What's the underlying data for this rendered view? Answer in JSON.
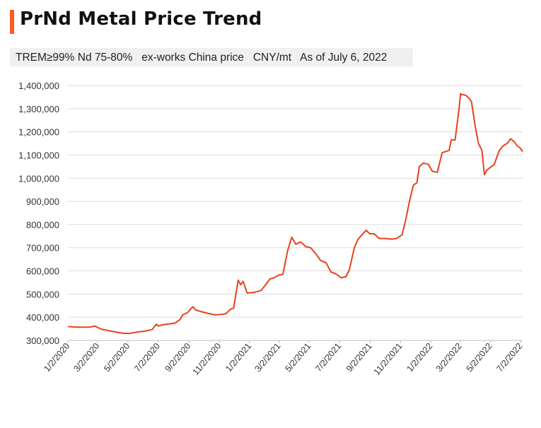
{
  "title": "PrNd Metal Price Trend",
  "subtitle": "TREM≥99% Nd 75-80%   ex-works China price   CNY/mt   As of July 6, 2022",
  "colors": {
    "accent": "#ff5a1f",
    "series": "#e8421c",
    "grid": "#dcdcdc"
  },
  "chart_data": {
    "type": "line",
    "title": "PrNd Metal Price Trend",
    "subtitle": "TREM≥99% Nd 75-80%   ex-works China price   CNY/mt   As of July 6, 2022",
    "xlabel": "",
    "ylabel": "",
    "xlim": [
      "2020-01-02",
      "2022-07-06"
    ],
    "ylim": [
      300000,
      1400000
    ],
    "x_ticks": [
      "1/2/2020",
      "3/2/2020",
      "5/2/2020",
      "7/2/2020",
      "9/2/2020",
      "11/2/2020",
      "1/2/2021",
      "3/2/2021",
      "5/2/2021",
      "7/2/2021",
      "9/2/2021",
      "11/2/2021",
      "1/2/2022",
      "3/2/2022",
      "5/2/2022",
      "7/2/2022"
    ],
    "y_ticks": [
      300000,
      400000,
      500000,
      600000,
      700000,
      800000,
      900000,
      1000000,
      1100000,
      1200000,
      1300000,
      1400000
    ],
    "y_tick_labels": [
      "300,000",
      "400,000",
      "500,000",
      "600,000",
      "700,000",
      "800,000",
      "900,000",
      "1,000,000",
      "1,100,000",
      "1,200,000",
      "1,300,000",
      "1,400,000"
    ],
    "grid": "horizontal",
    "legend": "none",
    "series": [
      {
        "x": [
          "2020-01-02",
          "2020-01-20",
          "2020-02-15",
          "2020-02-25",
          "2020-03-10",
          "2020-03-25",
          "2020-04-10",
          "2020-04-25",
          "2020-05-05",
          "2020-05-20",
          "2020-06-05",
          "2020-06-20",
          "2020-06-28",
          "2020-07-02",
          "2020-07-10",
          "2020-07-20",
          "2020-08-05",
          "2020-08-15",
          "2020-08-20",
          "2020-08-30",
          "2020-09-05",
          "2020-09-10",
          "2020-09-15",
          "2020-09-25",
          "2020-10-10",
          "2020-10-25",
          "2020-11-05",
          "2020-11-15",
          "2020-11-25",
          "2020-12-01",
          "2020-12-05",
          "2020-12-10",
          "2020-12-15",
          "2020-12-20",
          "2020-12-28",
          "2021-01-10",
          "2021-01-25",
          "2021-02-05",
          "2021-02-12",
          "2021-02-20",
          "2021-03-02",
          "2021-03-10",
          "2021-03-20",
          "2021-03-28",
          "2021-04-05",
          "2021-04-10",
          "2021-04-15",
          "2021-04-25",
          "2021-05-05",
          "2021-05-15",
          "2021-05-25",
          "2021-06-05",
          "2021-06-15",
          "2021-06-22",
          "2021-06-30",
          "2021-07-05",
          "2021-07-15",
          "2021-07-22",
          "2021-08-01",
          "2021-08-08",
          "2021-08-18",
          "2021-08-25",
          "2021-09-01",
          "2021-09-10",
          "2021-09-20",
          "2021-10-01",
          "2021-10-15",
          "2021-10-25",
          "2021-11-05",
          "2021-11-12",
          "2021-11-20",
          "2021-11-28",
          "2021-12-05",
          "2021-12-10",
          "2021-12-18",
          "2021-12-28",
          "2022-01-05",
          "2022-01-15",
          "2022-01-25",
          "2022-02-01",
          "2022-02-08",
          "2022-02-12",
          "2022-02-20",
          "2022-02-28",
          "2022-03-03",
          "2022-03-06",
          "2022-03-10",
          "2022-03-15",
          "2022-03-20",
          "2022-03-25",
          "2022-04-01",
          "2022-04-08",
          "2022-04-15",
          "2022-04-20",
          "2022-04-25",
          "2022-05-01",
          "2022-05-10",
          "2022-05-20",
          "2022-05-28",
          "2022-06-05",
          "2022-06-12",
          "2022-06-20",
          "2022-06-25",
          "2022-07-01",
          "2022-07-06"
        ],
        "y": [
          360000,
          357000,
          357000,
          362000,
          348000,
          342000,
          335000,
          330000,
          330000,
          336000,
          340000,
          347000,
          370000,
          362000,
          367000,
          370000,
          375000,
          390000,
          410000,
          420000,
          435000,
          445000,
          432000,
          425000,
          417000,
          410000,
          412000,
          415000,
          435000,
          440000,
          495000,
          560000,
          540000,
          555000,
          505000,
          507000,
          515000,
          545000,
          565000,
          570000,
          582000,
          585000,
          690000,
          745000,
          715000,
          720000,
          725000,
          705000,
          700000,
          675000,
          645000,
          635000,
          595000,
          590000,
          580000,
          570000,
          575000,
          605000,
          700000,
          735000,
          760000,
          775000,
          760000,
          760000,
          740000,
          740000,
          737000,
          740000,
          755000,
          815000,
          900000,
          970000,
          980000,
          1050000,
          1065000,
          1060000,
          1030000,
          1025000,
          1110000,
          1115000,
          1120000,
          1165000,
          1165000,
          1300000,
          1365000,
          1360000,
          1360000,
          1355000,
          1345000,
          1330000,
          1230000,
          1150000,
          1120000,
          1015000,
          1035000,
          1045000,
          1060000,
          1120000,
          1140000,
          1150000,
          1170000,
          1155000,
          1140000,
          1130000,
          1115000
        ]
      }
    ]
  }
}
